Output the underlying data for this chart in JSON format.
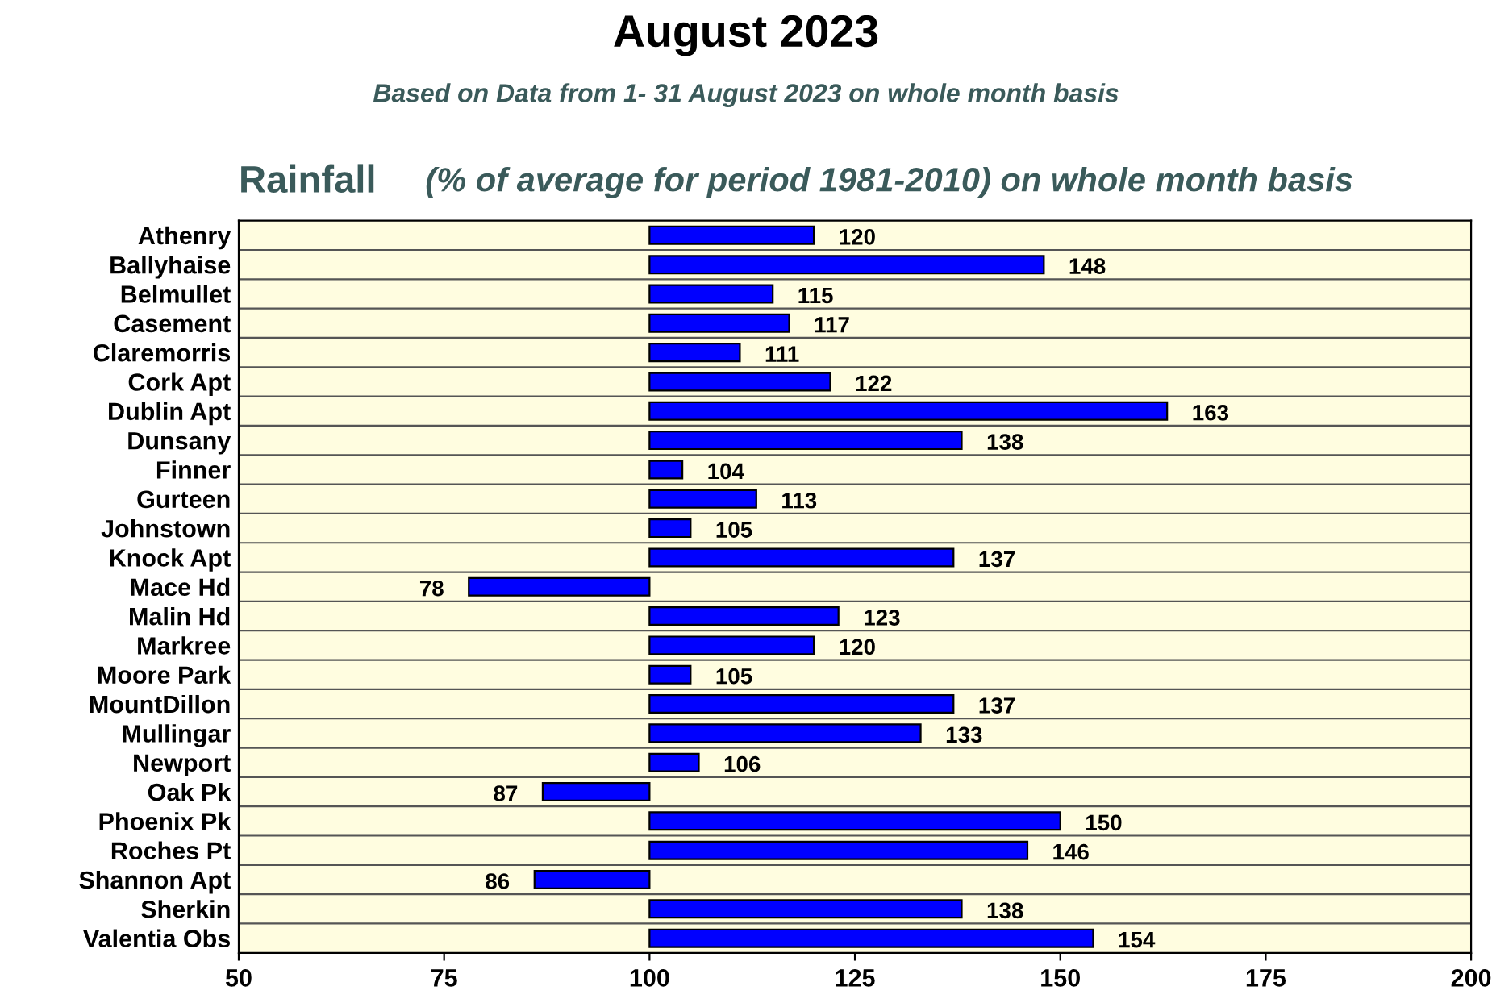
{
  "chart_data": {
    "type": "bar",
    "orientation": "horizontal",
    "title": "August 2023",
    "subtitle": "Based on Data from 1- 31 August 2023 on whole month basis",
    "annotations": [
      "Rainfall",
      "(% of average for period 1981-2010) on whole month basis"
    ],
    "categories": [
      "Athenry",
      "Ballyhaise",
      "Belmullet",
      "Casement",
      "Claremorris",
      "Cork Apt",
      "Dublin Apt",
      "Dunsany",
      "Finner",
      "Gurteen",
      "Johnstown",
      "Knock Apt",
      "Mace Hd",
      "Malin Hd",
      "Markree",
      "Moore Park",
      "MountDillon",
      "Mullingar",
      "Newport",
      "Oak Pk",
      "Phoenix Pk",
      "Roches Pt",
      "Shannon Apt",
      "Sherkin",
      "Valentia Obs"
    ],
    "base": [
      100,
      100,
      100,
      100,
      100,
      100,
      100,
      100,
      100,
      100,
      100,
      100,
      100,
      100,
      100,
      100,
      100,
      100,
      100,
      100,
      100,
      100,
      100,
      100,
      100
    ],
    "values": [
      20,
      48,
      15,
      17,
      11,
      22,
      63,
      38,
      4,
      13,
      5,
      37,
      -22,
      23,
      20,
      5,
      37,
      33,
      6,
      -13,
      50,
      46,
      -14,
      38,
      54
    ],
    "value_labels": [
      "120",
      "148",
      "115",
      "117",
      "111",
      "122",
      "163",
      "138",
      "104",
      "113",
      "105",
      "137",
      "78",
      "123",
      "120",
      "105",
      "137",
      "133",
      "106",
      "87",
      "150",
      "146",
      "86",
      "138",
      "154"
    ],
    "color": "#0000ff",
    "xlim": [
      50,
      200
    ],
    "xticks": [
      50,
      75,
      100,
      125,
      150,
      175,
      200
    ],
    "grid": "y",
    "legend": false
  }
}
